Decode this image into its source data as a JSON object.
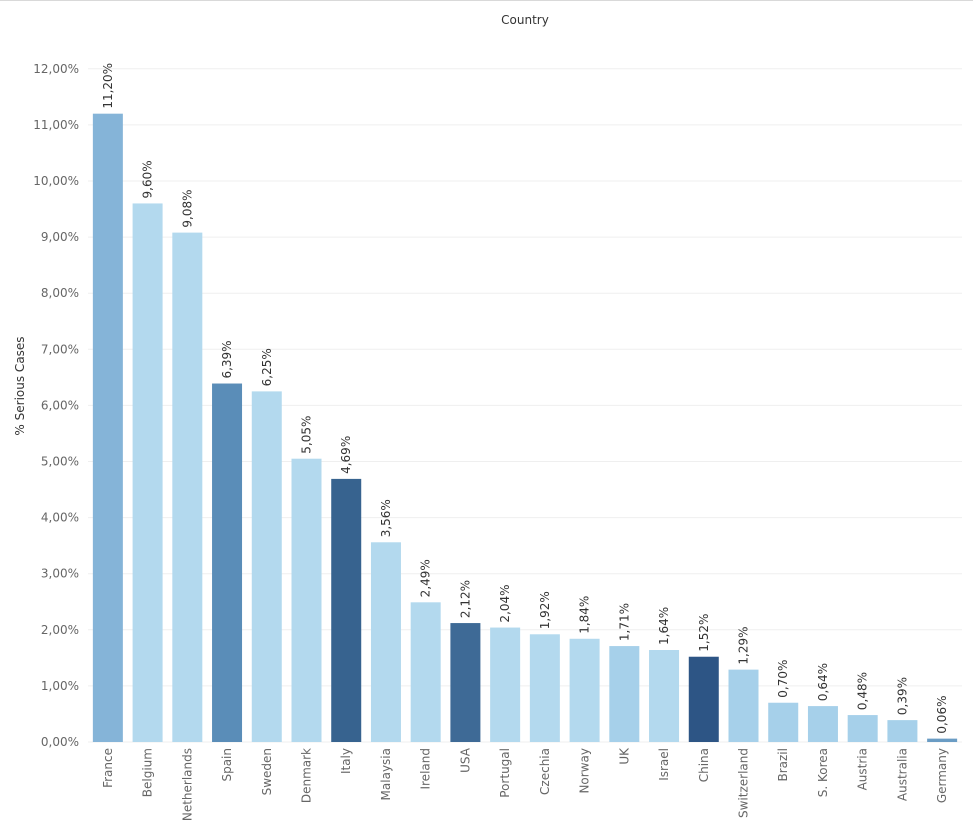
{
  "chart_data": {
    "type": "bar",
    "header": "Country",
    "ylabel": "% Serious Cases",
    "ylim": [
      0,
      12.8
    ],
    "yticks": [
      "0,00%",
      "1,00%",
      "2,00%",
      "3,00%",
      "4,00%",
      "5,00%",
      "6,00%",
      "7,00%",
      "8,00%",
      "9,00%",
      "10,00%",
      "11,00%",
      "12,00%"
    ],
    "grid": true,
    "categories": [
      "France",
      "Belgium",
      "Netherlands",
      "Spain",
      "Sweden",
      "Denmark",
      "Italy",
      "Malaysia",
      "Ireland",
      "USA",
      "Portugal",
      "Czechia",
      "Norway",
      "UK",
      "Israel",
      "China",
      "Switzerland",
      "Brazil",
      "S. Korea",
      "Austria",
      "Australia",
      "Germany"
    ],
    "values": [
      11.2,
      9.6,
      9.08,
      6.39,
      6.25,
      5.05,
      4.69,
      3.56,
      2.49,
      2.12,
      2.04,
      1.92,
      1.84,
      1.71,
      1.64,
      1.52,
      1.29,
      0.7,
      0.64,
      0.48,
      0.39,
      0.06
    ],
    "labels": [
      "11,20%",
      "9,60%",
      "9,08%",
      "6,39%",
      "6,25%",
      "5,05%",
      "4,69%",
      "3,56%",
      "2,49%",
      "2,12%",
      "2,04%",
      "1,92%",
      "1,84%",
      "1,71%",
      "1,64%",
      "1,52%",
      "1,29%",
      "0,70%",
      "0,64%",
      "0,48%",
      "0,39%",
      "0,06%"
    ],
    "colors": [
      "#85b4d8",
      "#b3d9ee",
      "#b3d9ee",
      "#5a8db8",
      "#b3d9ee",
      "#b3d9ee",
      "#37638f",
      "#b3d9ee",
      "#b3d9ee",
      "#3e6a96",
      "#b3d9ee",
      "#b3d9ee",
      "#b3d9ee",
      "#a6d0ea",
      "#b3d9ee",
      "#2d5585",
      "#a6d0ea",
      "#a6d0ea",
      "#a6d0ea",
      "#a6d0ea",
      "#a6d0ea",
      "#6a9cc4"
    ]
  }
}
